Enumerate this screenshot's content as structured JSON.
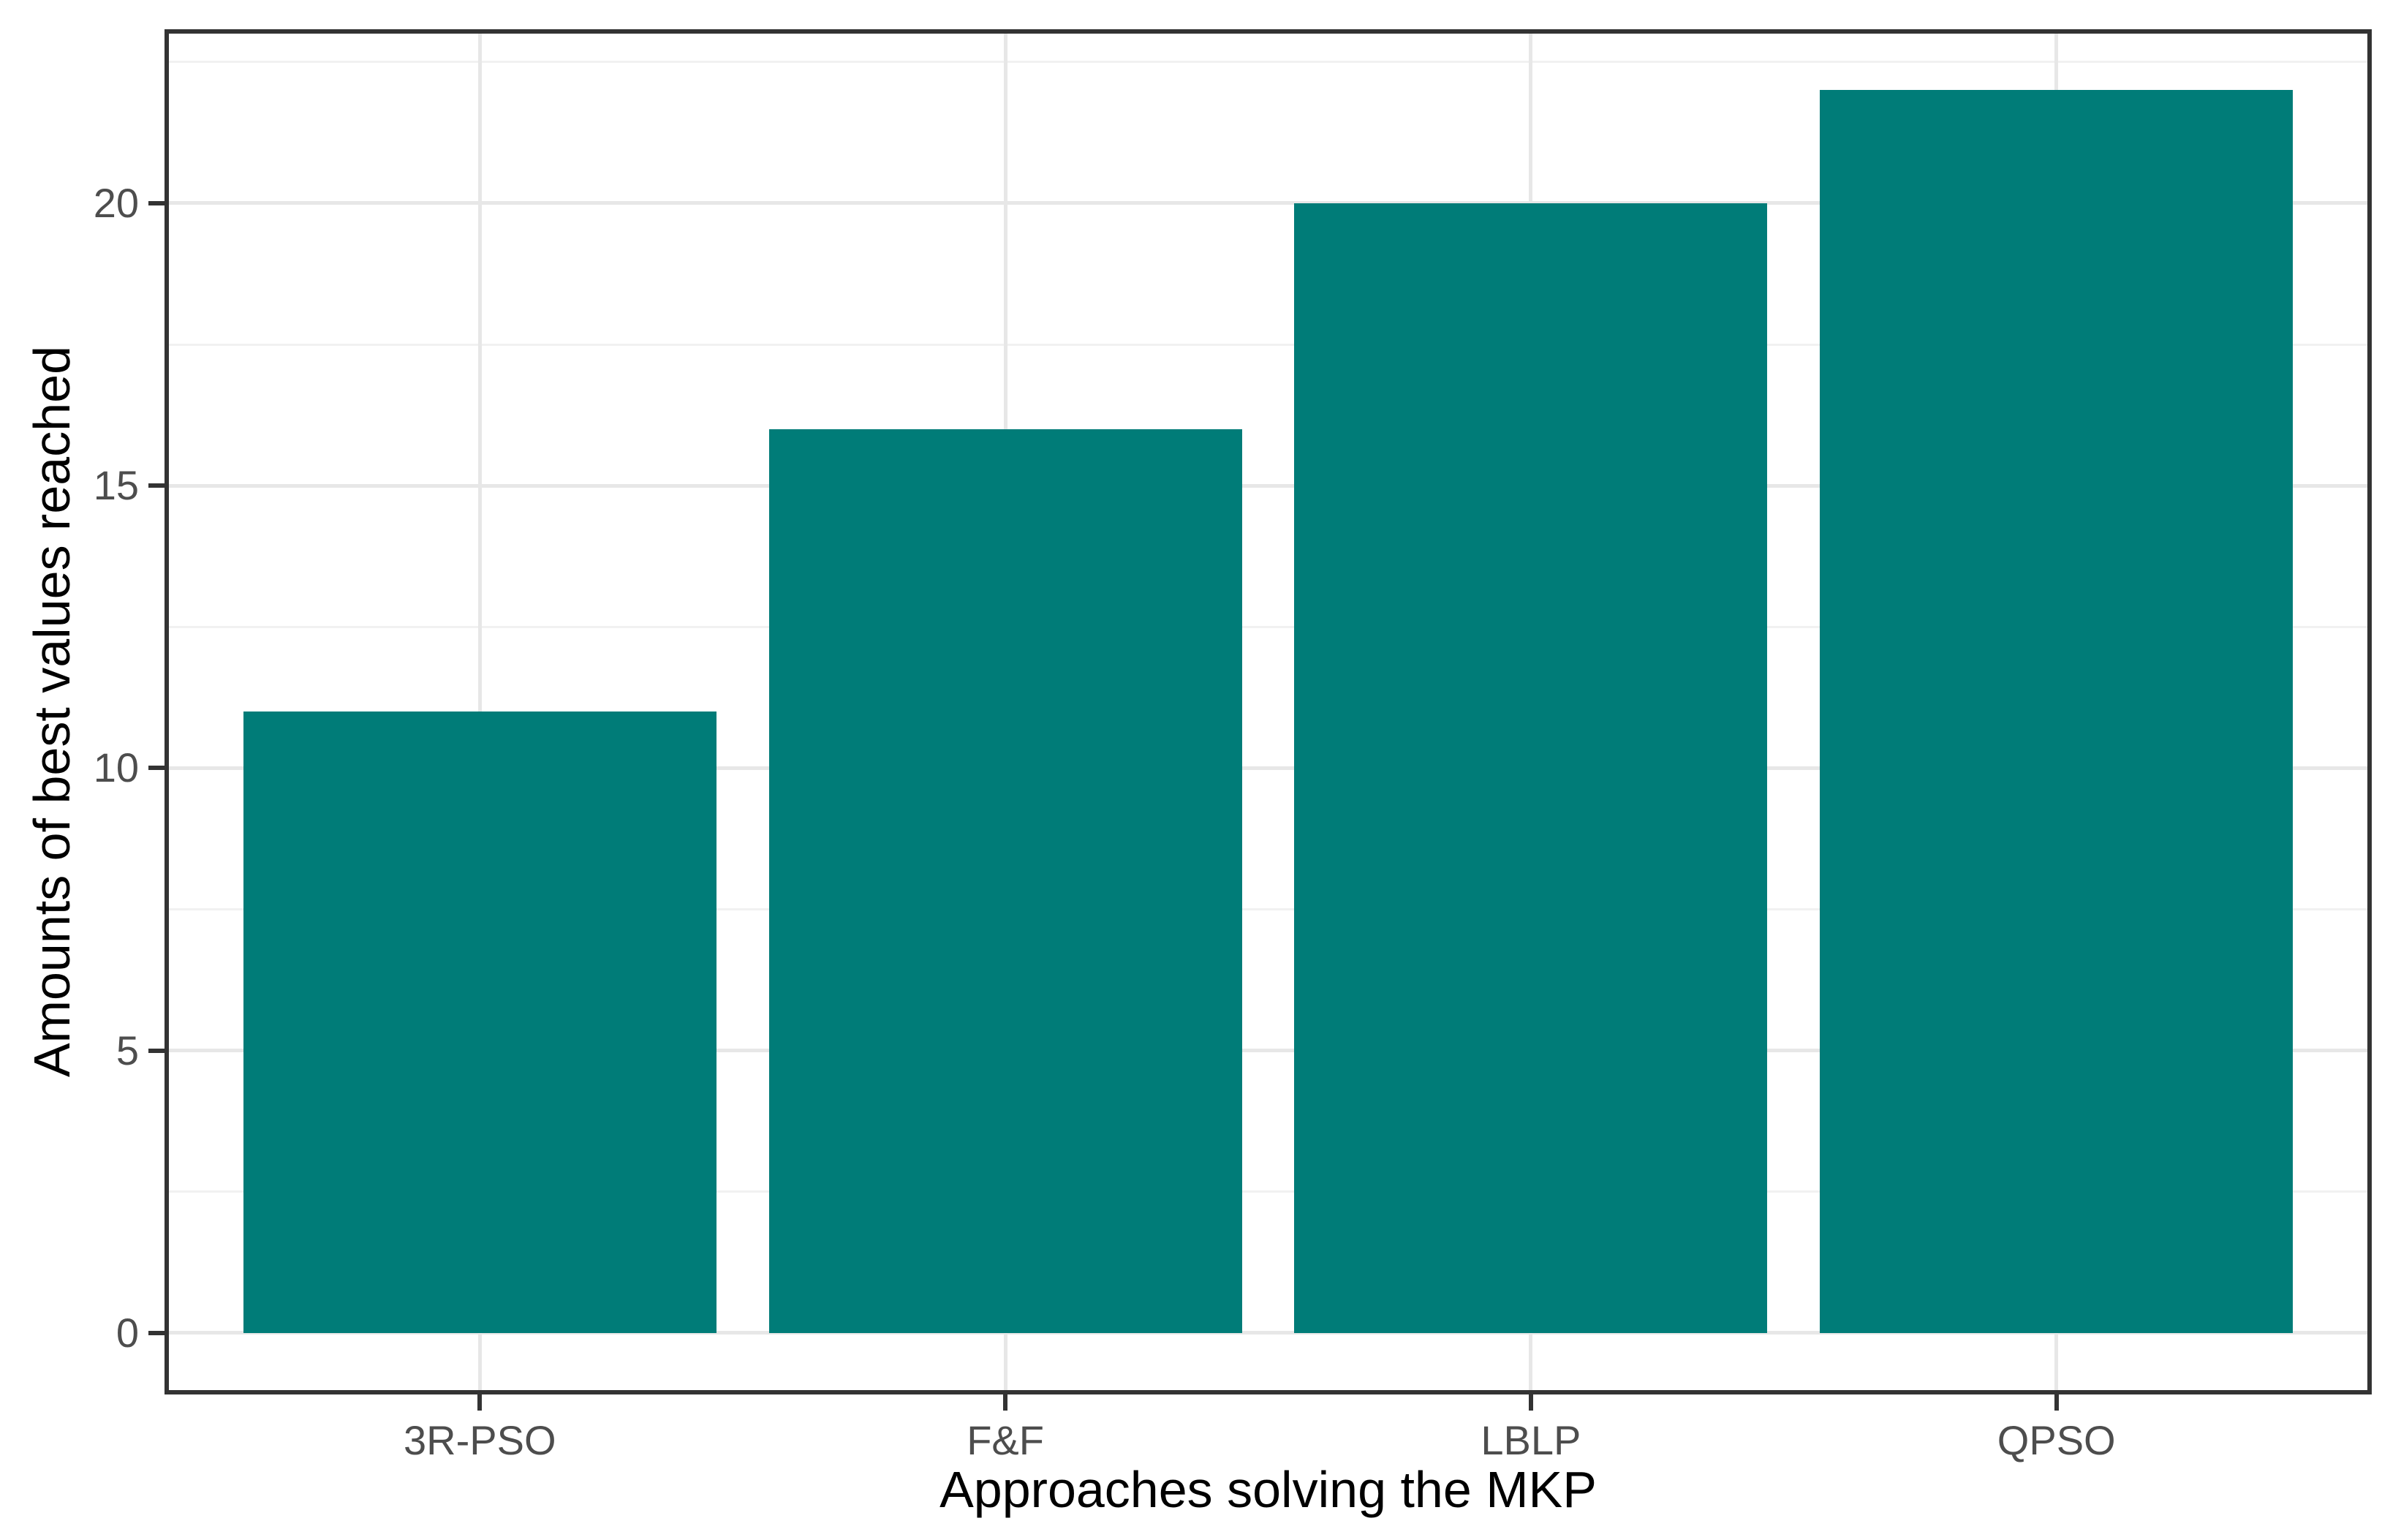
{
  "chart_data": {
    "type": "bar",
    "title": "",
    "xlabel": "Approaches solving the MKP",
    "ylabel": "Amounts of best values reached",
    "categories": [
      "3R-PSO",
      "F&F",
      "LBLP",
      "QPSO"
    ],
    "values": [
      11,
      16,
      20,
      22
    ],
    "y_axis": {
      "tick_values": [
        0,
        5,
        10,
        15,
        20
      ],
      "tick_labels": [
        "0",
        "5",
        "10",
        "15",
        "20"
      ],
      "minor_gridlines": [
        2.5,
        7.5,
        12.5,
        17.5,
        22.5
      ],
      "range": [
        -1.09,
        23.08
      ]
    },
    "x_axis": {
      "range": [
        0.4,
        4.6
      ],
      "bar_width": 0.9
    },
    "grid": {
      "horizontal_major": true,
      "horizontal_minor": true,
      "vertical_major": true,
      "vertical_minor": false
    },
    "legend": "none",
    "style": {
      "bar_color": "#007c78",
      "axis_color": "#333333",
      "tick_label_color": "#4d4d4d",
      "axis_title_color": "#000000",
      "grid_major_color": "#e7e7e7",
      "grid_minor_color": "#f1f1f1",
      "background": "#ffffff"
    }
  }
}
